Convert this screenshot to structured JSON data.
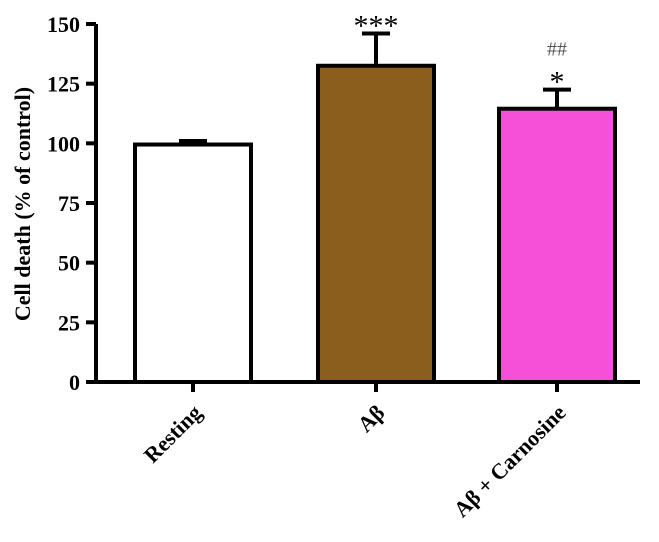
{
  "chart_data": {
    "type": "bar",
    "ylabel": "Cell death (% of control)",
    "xlabel": "",
    "ylim": [
      0,
      150
    ],
    "yticks": [
      0,
      25,
      50,
      75,
      100,
      125,
      150
    ],
    "categories": [
      "Resting",
      "Aβ",
      "Aβ + Carnosine"
    ],
    "values": [
      99.5,
      132.5,
      114.5
    ],
    "errors": [
      1.5,
      13.5,
      8
    ],
    "colors": [
      "#ffffff",
      "#8b5e1e",
      "#f750d8"
    ],
    "significance": [
      {
        "category": "Aβ",
        "marks": [
          "***"
        ]
      },
      {
        "category": "Aβ + Carnosine",
        "marks": [
          "##",
          "*"
        ]
      }
    ],
    "grid": false,
    "legend": "none"
  }
}
